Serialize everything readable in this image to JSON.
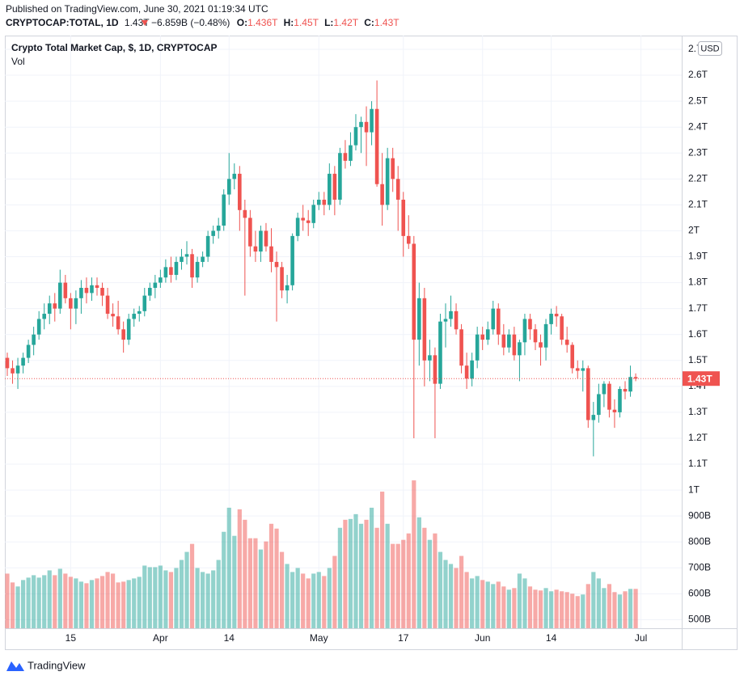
{
  "header": {
    "published": "Published on TradingView.com, June 30, 2021 01:19:34 UTC",
    "symbol": "CRYPTOCAP:TOTAL, 1D",
    "last": "1.43T",
    "change": "−6.859B (−0.48%)",
    "ohlc": [
      {
        "label": "O:",
        "value": "1.436T"
      },
      {
        "label": "H:",
        "value": "1.45T"
      },
      {
        "label": "L:",
        "value": "1.42T"
      },
      {
        "label": "C:",
        "value": "1.43T"
      }
    ]
  },
  "chart_data": {
    "type": "candlestick",
    "currency": "USD",
    "last_label": "1.43T",
    "categories": [
      "2021-03-03",
      "2021-03-04",
      "2021-03-05",
      "2021-03-06",
      "2021-03-07",
      "2021-03-08",
      "2021-03-09",
      "2021-03-10",
      "2021-03-11",
      "2021-03-12",
      "2021-03-13",
      "2021-03-14",
      "2021-03-15",
      "2021-03-16",
      "2021-03-17",
      "2021-03-18",
      "2021-03-19",
      "2021-03-20",
      "2021-03-21",
      "2021-03-22",
      "2021-03-23",
      "2021-03-24",
      "2021-03-25",
      "2021-03-26",
      "2021-03-27",
      "2021-03-28",
      "2021-03-29",
      "2021-03-30",
      "2021-03-31",
      "2021-04-01",
      "2021-04-02",
      "2021-04-03",
      "2021-04-04",
      "2021-04-05",
      "2021-04-06",
      "2021-04-07",
      "2021-04-08",
      "2021-04-09",
      "2021-04-10",
      "2021-04-11",
      "2021-04-12",
      "2021-04-13",
      "2021-04-14",
      "2021-04-15",
      "2021-04-16",
      "2021-04-17",
      "2021-04-18",
      "2021-04-19",
      "2021-04-20",
      "2021-04-21",
      "2021-04-22",
      "2021-04-23",
      "2021-04-24",
      "2021-04-25",
      "2021-04-26",
      "2021-04-27",
      "2021-04-28",
      "2021-04-29",
      "2021-04-30",
      "2021-05-01",
      "2021-05-02",
      "2021-05-03",
      "2021-05-04",
      "2021-05-05",
      "2021-05-06",
      "2021-05-07",
      "2021-05-08",
      "2021-05-09",
      "2021-05-10",
      "2021-05-11",
      "2021-05-12",
      "2021-05-13",
      "2021-05-14",
      "2021-05-15",
      "2021-05-16",
      "2021-05-17",
      "2021-05-18",
      "2021-05-19",
      "2021-05-20",
      "2021-05-21",
      "2021-05-22",
      "2021-05-23",
      "2021-05-24",
      "2021-05-25",
      "2021-05-26",
      "2021-05-27",
      "2021-05-28",
      "2021-05-29",
      "2021-05-30",
      "2021-05-31",
      "2021-06-01",
      "2021-06-02",
      "2021-06-03",
      "2021-06-04",
      "2021-06-05",
      "2021-06-06",
      "2021-06-07",
      "2021-06-08",
      "2021-06-09",
      "2021-06-10",
      "2021-06-11",
      "2021-06-12",
      "2021-06-13",
      "2021-06-14",
      "2021-06-15",
      "2021-06-16",
      "2021-06-17",
      "2021-06-18",
      "2021-06-19",
      "2021-06-20",
      "2021-06-21",
      "2021-06-22",
      "2021-06-23",
      "2021-06-24",
      "2021-06-25",
      "2021-06-26",
      "2021-06-27",
      "2021-06-28",
      "2021-06-29",
      "2021-06-30"
    ],
    "series": [
      {
        "name": "Crypto Total Market Cap, $, 1D, CRYPTOCAP",
        "up_color": "#26a69a",
        "down_color": "#ef5350",
        "open": [
          1.51,
          1.47,
          1.45,
          1.48,
          1.51,
          1.56,
          1.6,
          1.66,
          1.68,
          1.72,
          1.7,
          1.8,
          1.74,
          1.7,
          1.74,
          1.78,
          1.76,
          1.79,
          1.78,
          1.75,
          1.68,
          1.67,
          1.62,
          1.58,
          1.66,
          1.68,
          1.69,
          1.75,
          1.78,
          1.8,
          1.82,
          1.86,
          1.83,
          1.88,
          1.9,
          1.91,
          1.82,
          1.88,
          1.9,
          1.98,
          2.0,
          2.02,
          2.14,
          2.2,
          2.22,
          2.08,
          2.05,
          1.94,
          1.92,
          2.0,
          1.94,
          1.88,
          1.86,
          1.77,
          1.79,
          1.98,
          2.05,
          2.04,
          2.03,
          2.1,
          2.12,
          2.1,
          2.22,
          2.12,
          2.3,
          2.27,
          2.33,
          2.4,
          2.42,
          2.38,
          2.47,
          2.18,
          2.1,
          2.28,
          2.2,
          2.12,
          1.98,
          1.95,
          1.58,
          1.74,
          1.5,
          1.52,
          1.41,
          1.65,
          1.66,
          1.69,
          1.62,
          1.48,
          1.43,
          1.5,
          1.6,
          1.58,
          1.62,
          1.7,
          1.6,
          1.55,
          1.6,
          1.52,
          1.57,
          1.66,
          1.62,
          1.57,
          1.55,
          1.64,
          1.68,
          1.67,
          1.58,
          1.56,
          1.47,
          1.46,
          1.47,
          1.27,
          1.29,
          1.37,
          1.41,
          1.31,
          1.3,
          1.39,
          1.38,
          1.436
        ],
        "high": [
          1.53,
          1.5,
          1.51,
          1.53,
          1.58,
          1.63,
          1.69,
          1.72,
          1.75,
          1.76,
          1.85,
          1.83,
          1.76,
          1.77,
          1.81,
          1.82,
          1.82,
          1.82,
          1.8,
          1.78,
          1.72,
          1.73,
          1.65,
          1.68,
          1.7,
          1.71,
          1.78,
          1.8,
          1.83,
          1.85,
          1.89,
          1.9,
          1.9,
          1.93,
          1.96,
          1.93,
          1.9,
          1.92,
          2.0,
          2.02,
          2.05,
          2.16,
          2.3,
          2.26,
          2.25,
          2.12,
          2.08,
          2.0,
          2.02,
          2.03,
          2.01,
          1.92,
          1.88,
          1.83,
          1.99,
          2.07,
          2.1,
          2.08,
          2.12,
          2.15,
          2.15,
          2.26,
          2.25,
          2.32,
          2.35,
          2.38,
          2.45,
          2.44,
          2.48,
          2.5,
          2.58,
          2.3,
          2.32,
          2.32,
          2.25,
          2.15,
          2.06,
          1.98,
          1.8,
          1.78,
          1.58,
          1.55,
          1.68,
          1.72,
          1.75,
          1.72,
          1.64,
          1.53,
          1.53,
          1.63,
          1.63,
          1.65,
          1.73,
          1.72,
          1.64,
          1.62,
          1.63,
          1.58,
          1.68,
          1.68,
          1.64,
          1.6,
          1.66,
          1.7,
          1.71,
          1.68,
          1.63,
          1.57,
          1.5,
          1.5,
          1.48,
          1.34,
          1.41,
          1.42,
          1.42,
          1.35,
          1.4,
          1.42,
          1.48,
          1.45
        ],
        "low": [
          1.44,
          1.41,
          1.39,
          1.45,
          1.49,
          1.52,
          1.58,
          1.62,
          1.64,
          1.65,
          1.68,
          1.72,
          1.62,
          1.64,
          1.68,
          1.72,
          1.73,
          1.75,
          1.71,
          1.66,
          1.63,
          1.6,
          1.53,
          1.56,
          1.63,
          1.65,
          1.67,
          1.73,
          1.74,
          1.78,
          1.8,
          1.8,
          1.81,
          1.85,
          1.87,
          1.78,
          1.8,
          1.86,
          1.88,
          1.95,
          1.97,
          2.0,
          2.1,
          2.16,
          2.0,
          1.75,
          1.9,
          1.88,
          1.88,
          1.92,
          1.84,
          1.65,
          1.74,
          1.72,
          1.77,
          1.96,
          2.0,
          1.98,
          2.01,
          2.08,
          2.06,
          2.08,
          2.06,
          2.1,
          2.24,
          2.25,
          2.31,
          2.3,
          2.25,
          2.33,
          2.17,
          2.02,
          2.08,
          2.15,
          2.0,
          1.9,
          1.93,
          1.2,
          1.48,
          1.4,
          1.42,
          1.2,
          1.39,
          1.55,
          1.63,
          1.6,
          1.45,
          1.39,
          1.4,
          1.47,
          1.54,
          1.56,
          1.6,
          1.56,
          1.52,
          1.53,
          1.5,
          1.42,
          1.52,
          1.58,
          1.54,
          1.48,
          1.5,
          1.6,
          1.63,
          1.56,
          1.53,
          1.45,
          1.43,
          1.38,
          1.24,
          1.13,
          1.26,
          1.32,
          1.28,
          1.24,
          1.28,
          1.35,
          1.36,
          1.42
        ],
        "close": [
          1.47,
          1.45,
          1.48,
          1.51,
          1.56,
          1.6,
          1.66,
          1.68,
          1.72,
          1.7,
          1.8,
          1.74,
          1.7,
          1.74,
          1.78,
          1.76,
          1.79,
          1.78,
          1.75,
          1.68,
          1.67,
          1.62,
          1.58,
          1.66,
          1.68,
          1.69,
          1.75,
          1.78,
          1.8,
          1.82,
          1.86,
          1.83,
          1.88,
          1.9,
          1.91,
          1.82,
          1.88,
          1.9,
          1.98,
          2.0,
          2.02,
          2.14,
          2.2,
          2.22,
          2.08,
          2.05,
          1.94,
          1.92,
          2.0,
          1.94,
          1.88,
          1.86,
          1.77,
          1.79,
          1.98,
          2.05,
          2.04,
          2.03,
          2.1,
          2.12,
          2.1,
          2.22,
          2.12,
          2.3,
          2.27,
          2.33,
          2.4,
          2.42,
          2.38,
          2.47,
          2.18,
          2.1,
          2.28,
          2.2,
          2.12,
          1.98,
          1.95,
          1.58,
          1.74,
          1.5,
          1.52,
          1.41,
          1.65,
          1.66,
          1.69,
          1.62,
          1.48,
          1.43,
          1.5,
          1.6,
          1.58,
          1.62,
          1.7,
          1.6,
          1.55,
          1.6,
          1.52,
          1.57,
          1.66,
          1.62,
          1.57,
          1.55,
          1.64,
          1.68,
          1.67,
          1.58,
          1.56,
          1.47,
          1.46,
          1.47,
          1.27,
          1.29,
          1.37,
          1.41,
          1.31,
          1.3,
          1.39,
          1.38,
          1.436,
          1.43
        ]
      },
      {
        "name": "Vol",
        "axis": "y2",
        "up_color": "rgba(38,166,154,0.5)",
        "down_color": "rgba(239,83,80,0.5)",
        "values": [
          136,
          114,
          104,
          120,
          126,
          132,
          126,
          132,
          144,
          132,
          148,
          136,
          128,
          124,
          116,
          112,
          120,
          124,
          130,
          140,
          136,
          114,
          116,
          120,
          124,
          128,
          156,
          152,
          152,
          156,
          144,
          140,
          150,
          170,
          190,
          210,
          150,
          140,
          136,
          144,
          170,
          240,
          300,
          230,
          296,
          270,
          224,
          224,
          196,
          216,
          260,
          248,
          190,
          160,
          140,
          150,
          136,
          124,
          136,
          140,
          130,
          150,
          180,
          250,
          270,
          272,
          284,
          260,
          270,
          300,
          250,
          340,
          260,
          210,
          210,
          220,
          236,
          368,
          276,
          250,
          220,
          236,
          190,
          170,
          160,
          150,
          180,
          140,
          124,
          130,
          120,
          116,
          110,
          116,
          104,
          96,
          100,
          136,
          124,
          104,
          96,
          94,
          100,
          92,
          96,
          92,
          90,
          86,
          80,
          84,
          110,
          140,
          124,
          100,
          110,
          90,
          84,
          92,
          98,
          98
        ]
      }
    ],
    "ylim": [
      0.467,
      2.753
    ],
    "yticks": [
      {
        "value": 2.7,
        "label": "2.7T"
      },
      {
        "value": 2.6,
        "label": "2.6T"
      },
      {
        "value": 2.5,
        "label": "2.5T"
      },
      {
        "value": 2.4,
        "label": "2.4T"
      },
      {
        "value": 2.3,
        "label": "2.3T"
      },
      {
        "value": 2.2,
        "label": "2.2T"
      },
      {
        "value": 2.1,
        "label": "2.1T"
      },
      {
        "value": 2.0,
        "label": "2T"
      },
      {
        "value": 1.9,
        "label": "1.9T"
      },
      {
        "value": 1.8,
        "label": "1.8T"
      },
      {
        "value": 1.7,
        "label": "1.7T"
      },
      {
        "value": 1.6,
        "label": "1.6T"
      },
      {
        "value": 1.5,
        "label": "1.5T"
      },
      {
        "value": 1.4,
        "label": "1.4T"
      },
      {
        "value": 1.3,
        "label": "1.3T"
      },
      {
        "value": 1.2,
        "label": "1.2T"
      },
      {
        "value": 1.1,
        "label": "1.1T"
      },
      {
        "value": 1.0,
        "label": "1T"
      },
      {
        "value": 0.9,
        "label": "900B"
      },
      {
        "value": 0.8,
        "label": "800B"
      },
      {
        "value": 0.7,
        "label": "700B"
      },
      {
        "value": 0.6,
        "label": "600B"
      },
      {
        "value": 0.5,
        "label": "500B"
      }
    ],
    "y2lim": [
      0,
      1475
    ],
    "xticks": [
      {
        "value": "2021-03-15",
        "label": "15"
      },
      {
        "value": "2021-04-01",
        "label": "Apr"
      },
      {
        "value": "2021-04-14",
        "label": "14"
      },
      {
        "value": "2021-05-01",
        "label": "May"
      },
      {
        "value": "2021-05-17",
        "label": "17"
      },
      {
        "value": "2021-06-01",
        "label": "Jun"
      },
      {
        "value": "2021-06-14",
        "label": "14"
      },
      {
        "value": "2021-07-01",
        "label": "Jul"
      }
    ],
    "grid": true
  },
  "footer": {
    "brand": "TradingView"
  }
}
